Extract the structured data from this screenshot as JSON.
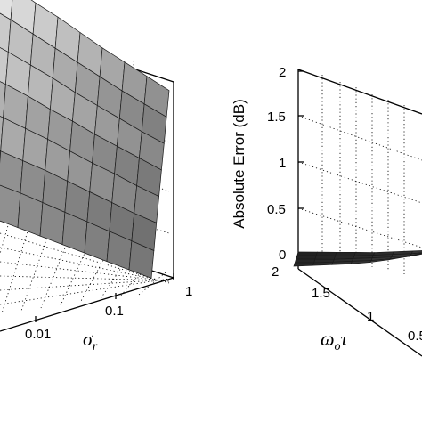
{
  "chart_data": [
    {
      "type": "surface",
      "panel": "left",
      "x_axis": {
        "label": "σ_r",
        "ticks": [
          "0.01",
          "0.1",
          "1"
        ],
        "scale": "log"
      },
      "floor_ticks": [
        "0.01",
        "0.1",
        "1"
      ],
      "grid": true,
      "colormap": "gray",
      "surface_rows": [
        [
          1.0,
          0.93,
          0.85,
          0.78,
          0.7,
          0.62,
          0.55,
          0.48,
          0.41
        ],
        [
          0.92,
          0.86,
          0.79,
          0.72,
          0.65,
          0.58,
          0.51,
          0.45,
          0.39
        ],
        [
          0.84,
          0.79,
          0.73,
          0.67,
          0.6,
          0.54,
          0.48,
          0.42,
          0.37
        ],
        [
          0.76,
          0.72,
          0.67,
          0.61,
          0.56,
          0.5,
          0.45,
          0.4,
          0.35
        ],
        [
          0.68,
          0.64,
          0.6,
          0.56,
          0.51,
          0.46,
          0.42,
          0.37,
          0.33
        ],
        [
          0.59,
          0.56,
          0.53,
          0.5,
          0.46,
          0.42,
          0.38,
          0.34,
          0.31
        ],
        [
          0.5,
          0.48,
          0.46,
          0.43,
          0.4,
          0.37,
          0.34,
          0.31,
          0.28
        ],
        [
          0.4,
          0.39,
          0.37,
          0.35,
          0.33,
          0.31,
          0.29,
          0.27,
          0.25
        ]
      ]
    },
    {
      "type": "surface",
      "panel": "right",
      "z_axis": {
        "label": "Absolute Error (dB)",
        "ticks": [
          "0",
          "0.5",
          "1",
          "1.5",
          "2"
        ],
        "range": [
          0,
          2
        ]
      },
      "y_axis": {
        "label": "ω_o τ",
        "ticks": [
          "2",
          "1.5",
          "1",
          "0.5"
        ]
      },
      "grid": true,
      "colormap": "gray",
      "surface_rows": [
        [
          0.02,
          0.03,
          0.04,
          0.05,
          0.06,
          0.08,
          0.1,
          0.12
        ],
        [
          0.03,
          0.04,
          0.05,
          0.06,
          0.08,
          0.1,
          0.12,
          0.15
        ],
        [
          0.04,
          0.05,
          0.06,
          0.08,
          0.1,
          0.12,
          0.15,
          0.19
        ],
        [
          0.05,
          0.06,
          0.08,
          0.1,
          0.12,
          0.15,
          0.19,
          0.24
        ],
        [
          0.06,
          0.08,
          0.1,
          0.12,
          0.15,
          0.19,
          0.24,
          0.3
        ]
      ]
    }
  ]
}
